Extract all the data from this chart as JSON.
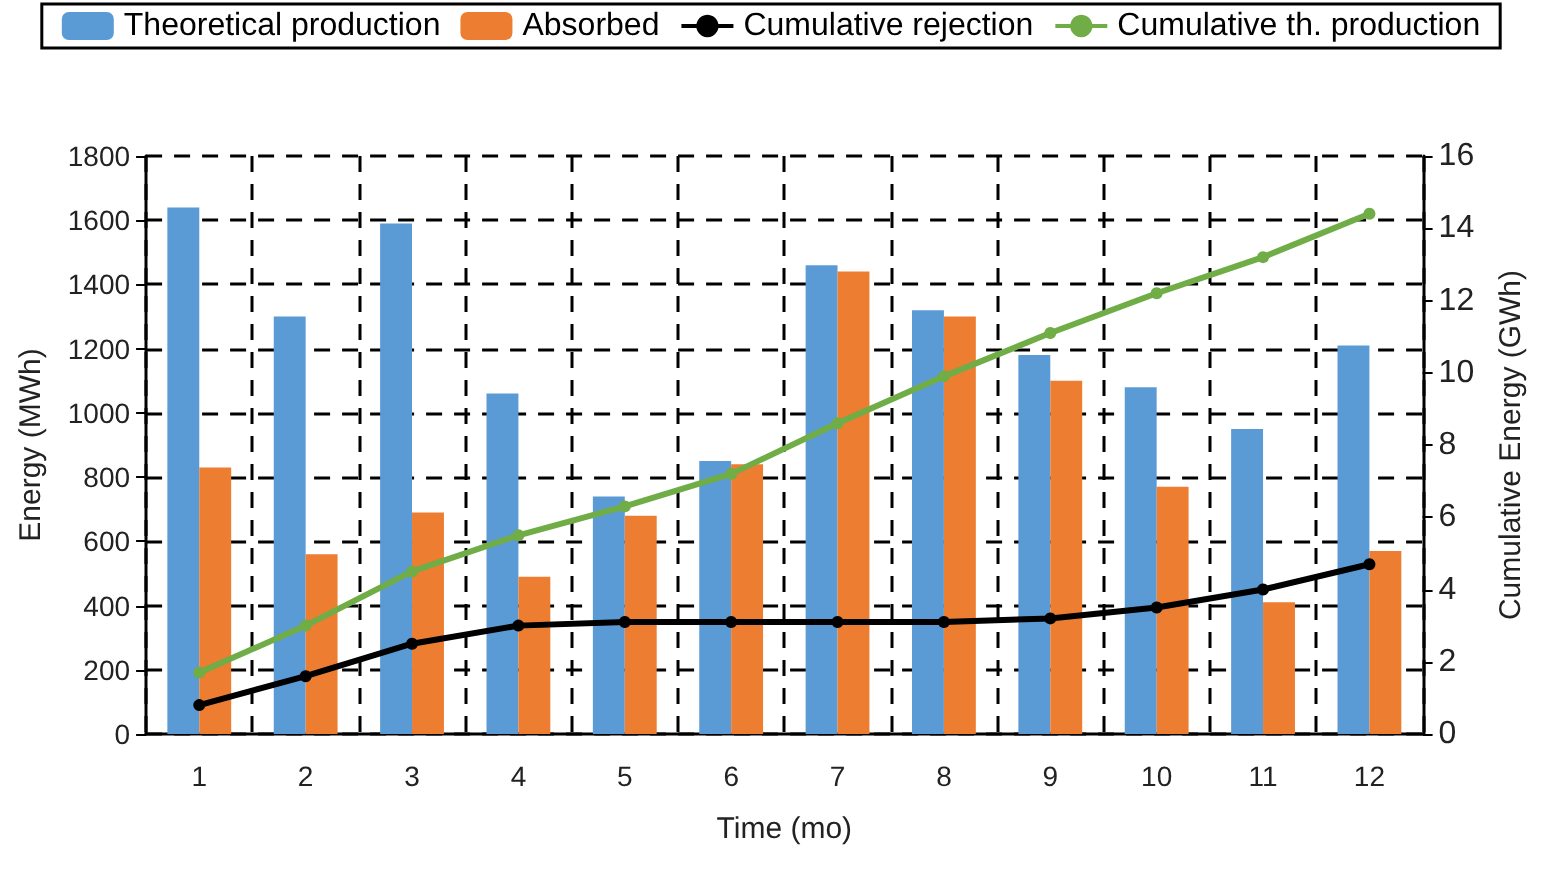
{
  "chart_data": {
    "type": "bar",
    "xlabel": "Time (mo)",
    "ylabel": "Energy (MWh)",
    "y2label": "Cumulative Energy (GWh)",
    "categories": [
      "1",
      "2",
      "3",
      "4",
      "5",
      "6",
      "7",
      "8",
      "9",
      "10",
      "11",
      "12"
    ],
    "series": [
      {
        "name": "Theoretical production",
        "color": "#5b9bd5",
        "values": [
          1640,
          1300,
          1590,
          1060,
          740,
          850,
          1460,
          1320,
          1180,
          1080,
          950,
          1210
        ]
      },
      {
        "name": "Absorbed",
        "color": "#ed7d31",
        "values": [
          830,
          560,
          690,
          490,
          680,
          840,
          1440,
          1300,
          1100,
          770,
          410,
          570
        ]
      },
      {
        "name": "Cumulative rejection",
        "type": "line",
        "axis": "y2",
        "color": "#000000",
        "values": [
          0.8,
          1.6,
          2.5,
          3.0,
          3.1,
          3.1,
          3.1,
          3.1,
          3.2,
          3.5,
          4.0,
          4.7
        ]
      },
      {
        "name": "Cumulative th. production",
        "type": "line",
        "axis": "y2",
        "color": "#70ad47",
        "values": [
          1.7,
          3.0,
          4.5,
          5.5,
          6.3,
          7.2,
          8.6,
          9.9,
          11.1,
          12.2,
          13.2,
          14.4
        ]
      }
    ],
    "ylim": [
      0,
      1800
    ],
    "yticks": [
      0,
      200,
      400,
      600,
      800,
      1000,
      1200,
      1400,
      1600,
      1800
    ],
    "y2lim": [
      0,
      16
    ],
    "y2ticks": [
      0,
      2,
      4,
      6,
      8,
      10,
      12,
      14,
      16
    ],
    "grid": true,
    "legend": "top",
    "marker": "circle",
    "line_style": "solid"
  }
}
